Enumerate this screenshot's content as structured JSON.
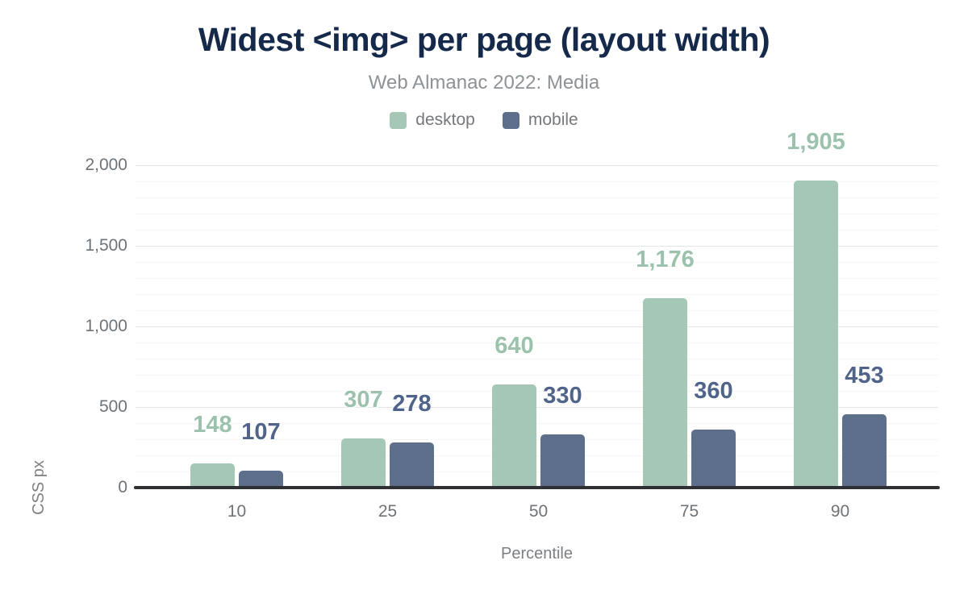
{
  "chart_data": {
    "type": "bar",
    "title": "Widest <img> per page (layout width)",
    "subtitle": "Web Almanac 2022: Media",
    "xlabel": "Percentile",
    "ylabel": "CSS px",
    "categories": [
      "10",
      "25",
      "50",
      "75",
      "90"
    ],
    "series": [
      {
        "name": "desktop",
        "color": "#a4c7b6",
        "label_color": "#9cc2ae",
        "values": [
          148,
          307,
          640,
          1176,
          1905
        ],
        "value_labels": [
          "148",
          "307",
          "640",
          "1,176",
          "1,905"
        ]
      },
      {
        "name": "mobile",
        "color": "#5e6f8c",
        "label_color": "#50648a",
        "values": [
          107,
          278,
          330,
          360,
          453
        ],
        "value_labels": [
          "107",
          "278",
          "330",
          "360",
          "453"
        ]
      }
    ],
    "y_axis": {
      "min": 0,
      "max": 2000,
      "major_step": 500,
      "minor_step": 100,
      "tick_labels": [
        "0",
        "500",
        "1,000",
        "1,500",
        "2,000"
      ]
    },
    "legend_position": "top",
    "grid": true,
    "colors": {
      "title": "#15294b",
      "subtitle": "#8d9297",
      "axis_text": "#6e7378",
      "axis_line": "#2e3033"
    }
  }
}
